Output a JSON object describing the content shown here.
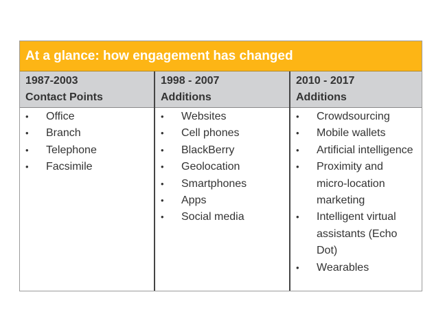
{
  "title": "At a glance: how engagement has changed",
  "columns": [
    {
      "period": "1987-2003",
      "heading": "Contact Points",
      "items": [
        "Office",
        "Branch",
        "Telephone",
        "Facsimile"
      ]
    },
    {
      "period": "1998 - 2007",
      "heading": "Additions",
      "items": [
        "Websites",
        "Cell phones",
        "BlackBerry",
        "Geolocation",
        "Smartphones",
        "Apps",
        "Social media"
      ]
    },
    {
      "period": "2010 - 2017",
      "heading": "Additions",
      "items": [
        "Crowdsourcing",
        "Mobile wallets",
        "Artificial intelligence",
        "Proximity and micro-location marketing",
        "Intelligent virtual assistants (Echo Dot)",
        "Wearables"
      ]
    }
  ],
  "colors": {
    "title_bg": "#fdb515",
    "header_bg": "#d1d2d4"
  }
}
